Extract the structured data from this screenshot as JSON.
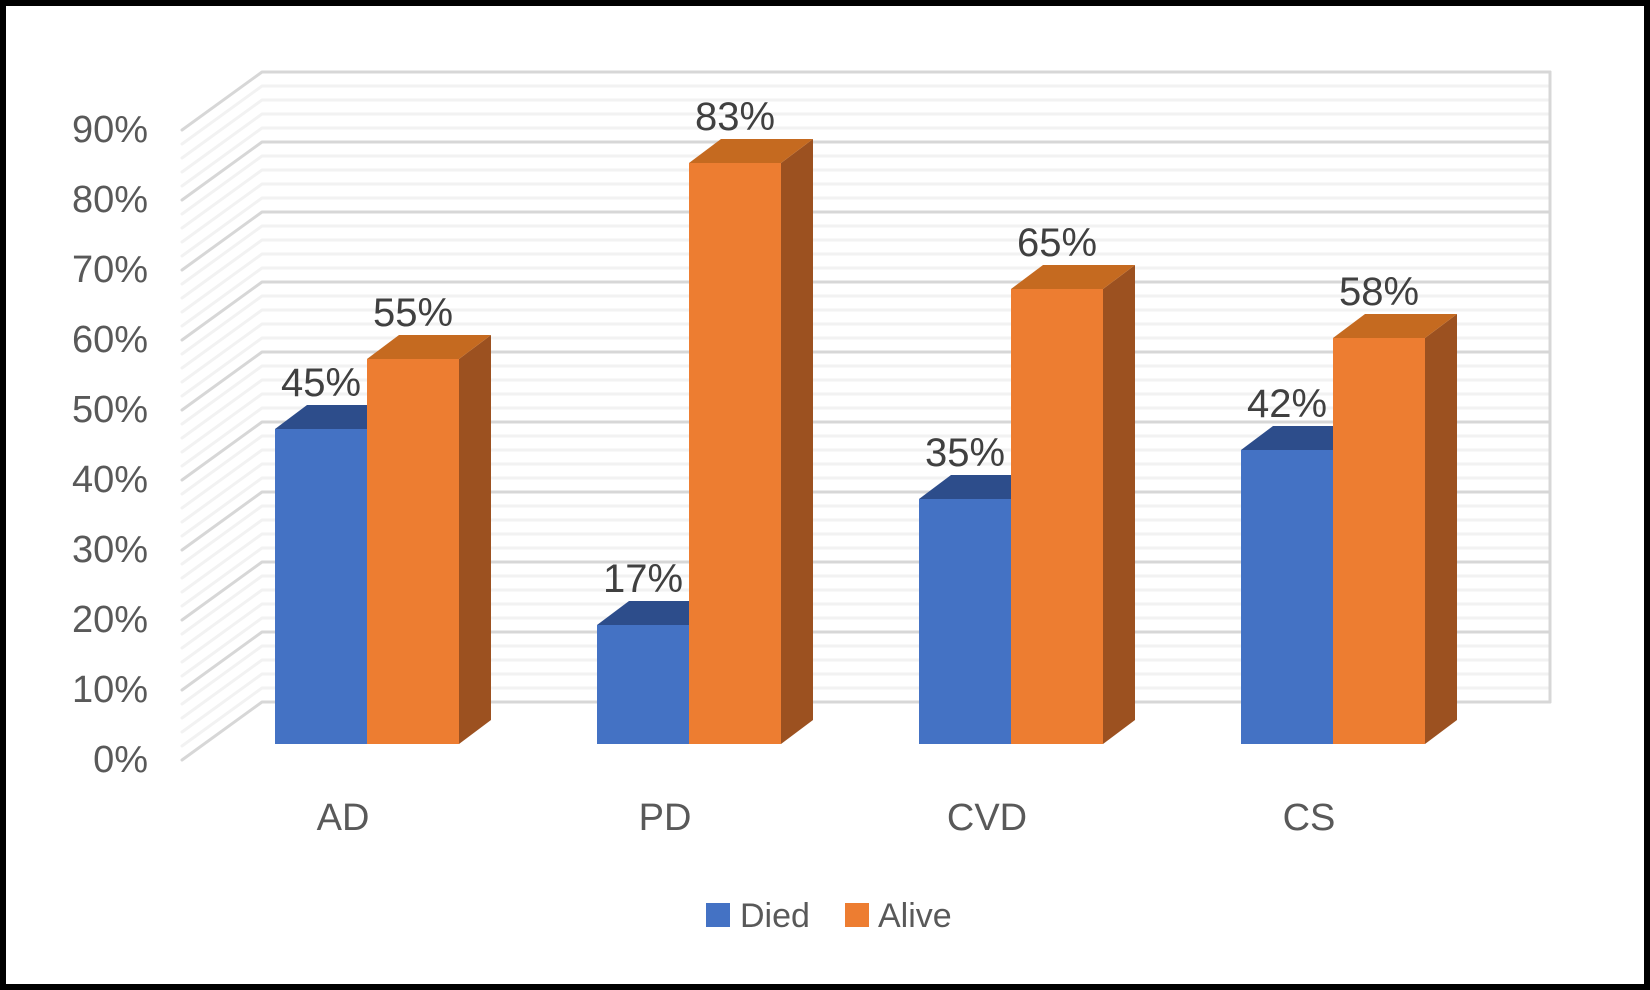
{
  "chart_data": {
    "type": "bar",
    "variant": "3d_clustered_column",
    "title": "",
    "categories": [
      "AD",
      "PD",
      "CVD",
      "CS"
    ],
    "series": [
      {
        "name": "Died",
        "values": [
          45,
          17,
          35,
          42
        ],
        "data_labels": [
          "45%",
          "17%",
          "35%",
          "42%"
        ],
        "color_front": "#4472C4",
        "color_top": "#2D4D8B",
        "color_side": "#2A4679"
      },
      {
        "name": "Alive",
        "values": [
          55,
          83,
          65,
          58
        ],
        "data_labels": [
          "55%",
          "83%",
          "65%",
          "58%"
        ],
        "color_front": "#ED7D31",
        "color_top": "#C56A20",
        "color_side": "#9C5120"
      }
    ],
    "y_axis": {
      "ticks": [
        "0%",
        "10%",
        "20%",
        "30%",
        "40%",
        "50%",
        "60%",
        "70%",
        "80%",
        "90%"
      ],
      "min": 0,
      "max": 90,
      "major_unit": 10,
      "minor_unit": 2
    },
    "x_axis": {
      "labels": [
        "AD",
        "PD",
        "CVD",
        "CS"
      ]
    },
    "legend": {
      "position": "bottom",
      "entries": [
        "Died",
        "Alive"
      ]
    },
    "gridlines": {
      "major_color": "#D7D7D7",
      "minor_color": "#F2F2F2"
    },
    "text_colors": {
      "axis": "#595959",
      "data_label": "#404040"
    },
    "frame_border_color": "#000000",
    "background_color": "#FFFFFF"
  }
}
